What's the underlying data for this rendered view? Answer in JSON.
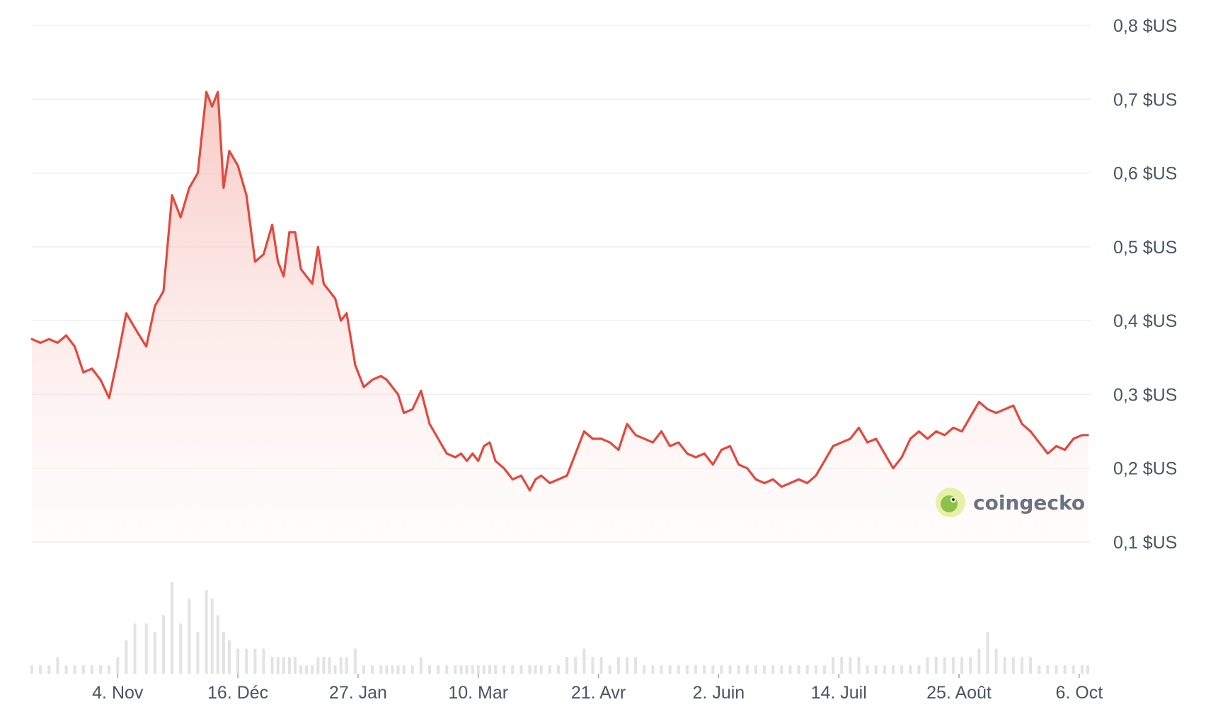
{
  "chart_data": {
    "type": "area",
    "title": "",
    "xlabel": "",
    "ylabel": "",
    "ylim": [
      0.1,
      0.8
    ],
    "grid": true,
    "y_tick_values": [
      0.8,
      0.7,
      0.6,
      0.5,
      0.4,
      0.3,
      0.2,
      0.1
    ],
    "y_tick_labels": [
      "0,8 $US",
      "0,7 $US",
      "0,6 $US",
      "0,5 $US",
      "0,4 $US",
      "0,3 $US",
      "0,2 $US",
      "0,1 $US"
    ],
    "x_tick_days": [
      30,
      72,
      114,
      156,
      198,
      240,
      282,
      324,
      366
    ],
    "x_tick_labels": [
      "4. Nov",
      "16. Déc",
      "27. Jan",
      "10. Mar",
      "21. Avr",
      "2. Juin",
      "14. Juil",
      "25. Août",
      "6. Oct"
    ],
    "x_range_days": [
      0,
      370
    ],
    "line_color": "#e5483d",
    "fill_color": "#f9d2cf",
    "volume_color": "#e3e3e3",
    "series": [
      {
        "x": [
          0,
          3,
          6,
          9,
          12,
          15,
          18,
          21,
          24,
          27,
          30,
          33,
          36,
          40,
          43,
          46,
          49,
          52,
          55,
          58,
          61,
          63,
          65,
          67,
          69,
          72,
          75,
          78,
          81,
          84,
          86,
          88,
          90,
          92,
          94,
          96,
          98,
          100,
          102,
          104,
          106,
          108,
          110,
          113,
          116,
          119,
          122,
          124,
          126,
          128,
          130,
          133,
          136,
          139,
          142,
          145,
          148,
          150,
          152,
          154,
          156,
          158,
          160,
          162,
          165,
          168,
          171,
          174,
          176,
          178,
          181,
          184,
          187,
          190,
          193,
          196,
          199,
          202,
          205,
          208,
          211,
          214,
          217,
          220,
          223,
          226,
          229,
          232,
          235,
          238,
          241,
          244,
          247,
          250,
          253,
          256,
          259,
          262,
          265,
          268,
          271,
          274,
          277,
          280,
          283,
          286,
          289,
          292,
          295,
          298,
          301,
          304,
          307,
          310,
          313,
          316,
          319,
          322,
          325,
          328,
          331,
          334,
          337,
          340,
          343,
          346,
          349,
          352,
          355,
          358,
          361,
          364,
          367,
          369
        ],
        "values": [
          0.375,
          0.37,
          0.375,
          0.37,
          0.38,
          0.365,
          0.33,
          0.335,
          0.32,
          0.295,
          0.35,
          0.41,
          0.39,
          0.365,
          0.42,
          0.44,
          0.57,
          0.54,
          0.58,
          0.6,
          0.71,
          0.69,
          0.71,
          0.58,
          0.63,
          0.61,
          0.57,
          0.48,
          0.49,
          0.53,
          0.48,
          0.46,
          0.52,
          0.52,
          0.47,
          0.46,
          0.45,
          0.5,
          0.45,
          0.44,
          0.43,
          0.4,
          0.41,
          0.34,
          0.31,
          0.32,
          0.325,
          0.32,
          0.31,
          0.3,
          0.275,
          0.28,
          0.305,
          0.26,
          0.24,
          0.22,
          0.215,
          0.22,
          0.21,
          0.22,
          0.21,
          0.23,
          0.235,
          0.21,
          0.2,
          0.185,
          0.19,
          0.17,
          0.185,
          0.19,
          0.18,
          0.185,
          0.19,
          0.22,
          0.25,
          0.24,
          0.24,
          0.235,
          0.225,
          0.26,
          0.245,
          0.24,
          0.235,
          0.25,
          0.23,
          0.235,
          0.22,
          0.215,
          0.22,
          0.205,
          0.225,
          0.23,
          0.205,
          0.2,
          0.185,
          0.18,
          0.185,
          0.175,
          0.18,
          0.185,
          0.18,
          0.19,
          0.21,
          0.23,
          0.235,
          0.24,
          0.255,
          0.235,
          0.24,
          0.22,
          0.2,
          0.215,
          0.24,
          0.25,
          0.24,
          0.25,
          0.245,
          0.255,
          0.25,
          0.27,
          0.29,
          0.28,
          0.275,
          0.28,
          0.285,
          0.26,
          0.25,
          0.235,
          0.22,
          0.23,
          0.225,
          0.24,
          0.245,
          0.245
        ],
        "volume": [
          1,
          1,
          1,
          2,
          1,
          1,
          1,
          1,
          1,
          1,
          2,
          4,
          6,
          6,
          5,
          7,
          11,
          6,
          9,
          5,
          10,
          9,
          7,
          5,
          4,
          3,
          3,
          3,
          3,
          2,
          2,
          2,
          2,
          2,
          1,
          1,
          1,
          2,
          2,
          2,
          1,
          2,
          2,
          3,
          1,
          1,
          1,
          1,
          1,
          1,
          1,
          1,
          2,
          1,
          1,
          1,
          1,
          1,
          1,
          1,
          1,
          1,
          1,
          1,
          1,
          1,
          1,
          1,
          1,
          1,
          1,
          1,
          2,
          2,
          3,
          2,
          2,
          1,
          2,
          2,
          2,
          1,
          1,
          1,
          1,
          1,
          1,
          1,
          1,
          1,
          1,
          1,
          1,
          1,
          1,
          1,
          1,
          1,
          1,
          1,
          1,
          1,
          1,
          2,
          2,
          2,
          2,
          1,
          1,
          1,
          1,
          1,
          1,
          1,
          2,
          2,
          2,
          2,
          2,
          2,
          3,
          5,
          3,
          2,
          2,
          2,
          2,
          1,
          1,
          1,
          1,
          1,
          1,
          1
        ]
      }
    ]
  },
  "watermark": {
    "text": "coingecko",
    "icon": "gecko-logo-icon"
  }
}
